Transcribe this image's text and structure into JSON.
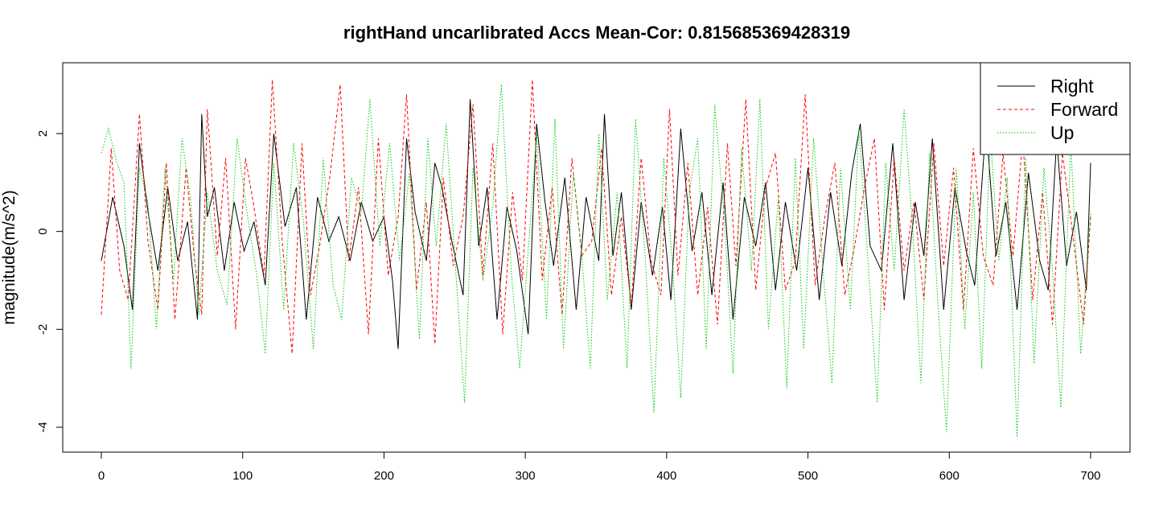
{
  "chart_data": {
    "type": "line",
    "title": "rightHand uncarlibrated Accs Mean-Cor: 0.815685369428319",
    "xlabel": "",
    "ylabel": "magnitude(m/s^2)",
    "xlim": [
      0,
      700
    ],
    "ylim": [
      -4.2,
      3.1
    ],
    "xticks": [
      0,
      100,
      200,
      300,
      400,
      500,
      600,
      700
    ],
    "yticks": [
      -4,
      -2,
      0,
      2
    ],
    "grid": false,
    "legend": "top-right",
    "series": [
      {
        "name": "Right",
        "color": "#000000",
        "dash": "solid",
        "x": [
          0,
          8,
          16,
          22,
          27,
          33,
          40,
          47,
          54,
          61,
          68,
          71,
          75,
          80,
          87,
          94,
          101,
          108,
          116,
          122,
          130,
          138,
          145,
          153,
          161,
          168,
          176,
          184,
          192,
          200,
          206,
          210,
          216,
          222,
          230,
          236,
          241,
          248,
          256,
          261,
          267,
          273,
          280,
          287,
          294,
          302,
          308,
          314,
          320,
          328,
          336,
          343,
          352,
          356,
          362,
          368,
          375,
          382,
          390,
          397,
          403,
          410,
          418,
          425,
          432,
          440,
          447,
          455,
          463,
          470,
          477,
          484,
          492,
          500,
          508,
          516,
          524,
          531,
          537,
          544,
          552,
          560,
          568,
          576,
          582,
          588,
          596,
          604,
          612,
          618,
          626,
          633,
          640,
          648,
          656,
          664,
          670,
          676,
          683,
          690,
          697,
          700
        ],
        "values": [
          -0.6,
          0.7,
          -0.3,
          -1.6,
          1.8,
          0.4,
          -0.8,
          0.9,
          -0.6,
          0.2,
          -1.8,
          2.4,
          0.3,
          0.9,
          -0.8,
          0.6,
          -0.4,
          0.2,
          -1.1,
          2.0,
          0.1,
          0.9,
          -1.8,
          0.7,
          -0.2,
          0.3,
          -0.6,
          0.6,
          -0.2,
          0.3,
          -1.0,
          -2.4,
          1.9,
          0.4,
          -0.6,
          1.4,
          0.9,
          -0.2,
          -1.3,
          2.7,
          -0.3,
          0.9,
          -1.8,
          0.5,
          -0.4,
          -2.1,
          2.2,
          0.6,
          -0.7,
          1.1,
          -1.6,
          0.7,
          -0.6,
          2.4,
          -0.5,
          0.8,
          -1.6,
          0.6,
          -0.9,
          0.5,
          -1.4,
          2.1,
          -0.4,
          0.8,
          -1.3,
          1.0,
          -1.8,
          0.7,
          -0.3,
          1.0,
          -1.2,
          0.6,
          -0.8,
          1.3,
          -1.4,
          0.8,
          -0.7,
          1.2,
          2.2,
          -0.3,
          -0.8,
          1.8,
          -1.4,
          0.6,
          -0.5,
          1.9,
          -1.6,
          0.9,
          -0.4,
          -1.1,
          2.2,
          -0.5,
          0.6,
          -1.6,
          1.2,
          -0.6,
          -1.2,
          1.9,
          -0.7,
          0.4,
          -1.2,
          1.4
        ]
      },
      {
        "name": "Forward",
        "color": "#ff0000",
        "dash": "dashed",
        "x": [
          0,
          7,
          13,
          19,
          27,
          33,
          40,
          46,
          52,
          60,
          66,
          71,
          75,
          82,
          88,
          95,
          102,
          108,
          115,
          121,
          128,
          135,
          142,
          148,
          155,
          162,
          169,
          175,
          182,
          189,
          196,
          203,
          210,
          216,
          223,
          230,
          236,
          242,
          249,
          256,
          263,
          270,
          277,
          284,
          291,
          298,
          305,
          312,
          319,
          326,
          333,
          340,
          347,
          354,
          361,
          368,
          375,
          382,
          389,
          396,
          402,
          408,
          415,
          422,
          429,
          436,
          443,
          449,
          456,
          463,
          470,
          477,
          484,
          491,
          498,
          505,
          512,
          519,
          526,
          533,
          540,
          547,
          554,
          561,
          568,
          575,
          582,
          589,
          596,
          603,
          610,
          617,
          624,
          631,
          638,
          645,
          652,
          659,
          666,
          673,
          680,
          688,
          695,
          700
        ],
        "values": [
          -1.7,
          1.7,
          -0.8,
          -1.4,
          2.4,
          -0.2,
          -1.6,
          1.4,
          -1.8,
          1.3,
          -0.6,
          -1.7,
          2.5,
          -0.5,
          1.5,
          -2.0,
          1.5,
          0.5,
          -0.9,
          3.1,
          -0.2,
          -2.5,
          1.8,
          -1.3,
          -0.2,
          1.2,
          3.0,
          -0.6,
          0.9,
          -2.1,
          1.9,
          -0.9,
          0.3,
          2.8,
          -1.2,
          0.6,
          -2.3,
          1.1,
          -0.7,
          0.3,
          2.6,
          -0.9,
          1.8,
          -2.1,
          0.8,
          -1.0,
          3.1,
          -1.0,
          0.9,
          -1.7,
          1.5,
          -0.5,
          -0.2,
          1.7,
          -1.3,
          0.3,
          -1.5,
          1.5,
          -0.6,
          -1.3,
          2.5,
          -0.9,
          1.4,
          -1.3,
          0.5,
          -1.9,
          1.8,
          -0.7,
          2.7,
          -1.2,
          0.9,
          1.6,
          -1.2,
          -0.6,
          2.8,
          -1.1,
          0.3,
          1.4,
          -1.3,
          -0.3,
          0.9,
          1.9,
          -1.6,
          1.5,
          -0.8,
          0.6,
          -1.4,
          1.8,
          -0.7,
          1.3,
          -1.6,
          1.7,
          -0.5,
          -1.1,
          1.6,
          -0.5,
          1.9,
          -1.4,
          0.8,
          -1.9,
          1.6,
          -0.2,
          -1.9,
          0.3
        ]
      },
      {
        "name": "Up",
        "color": "#00cd00",
        "dash": "dotted",
        "x": [
          0,
          5,
          11,
          16,
          21,
          27,
          33,
          39,
          45,
          51,
          57,
          63,
          69,
          75,
          82,
          89,
          96,
          103,
          110,
          116,
          122,
          129,
          136,
          143,
          150,
          157,
          164,
          170,
          177,
          184,
          190,
          197,
          204,
          211,
          218,
          225,
          231,
          237,
          244,
          251,
          257,
          263,
          270,
          277,
          283,
          290,
          296,
          302,
          308,
          315,
          321,
          327,
          334,
          340,
          346,
          352,
          358,
          365,
          372,
          378,
          385,
          391,
          398,
          404,
          410,
          416,
          422,
          428,
          434,
          441,
          447,
          453,
          460,
          466,
          472,
          479,
          485,
          491,
          497,
          504,
          511,
          517,
          523,
          530,
          536,
          542,
          549,
          555,
          561,
          568,
          574,
          580,
          586,
          592,
          598,
          605,
          611,
          617,
          623,
          629,
          635,
          641,
          648,
          654,
          660,
          667,
          673,
          679,
          686,
          693,
          700
        ],
        "values": [
          1.6,
          2.1,
          1.4,
          1.0,
          -2.8,
          1.3,
          0.6,
          -2.0,
          1.3,
          -1.0,
          1.9,
          0.7,
          -1.7,
          0.8,
          -0.8,
          -1.5,
          1.9,
          0.4,
          -0.9,
          -2.5,
          1.4,
          -1.6,
          1.8,
          0.2,
          -2.4,
          1.5,
          -1.1,
          -1.8,
          1.1,
          0.4,
          2.7,
          -0.3,
          1.8,
          -0.6,
          1.2,
          -2.2,
          1.9,
          -0.3,
          2.2,
          -0.9,
          -3.5,
          1.3,
          -1.0,
          0.5,
          3.0,
          -0.8,
          -2.8,
          -0.4,
          2.0,
          -1.8,
          2.3,
          -2.4,
          1.2,
          -0.5,
          -2.8,
          2.0,
          -1.4,
          0.8,
          -2.8,
          2.3,
          -0.6,
          -3.7,
          1.5,
          -0.6,
          -3.4,
          0.8,
          1.9,
          -2.4,
          2.6,
          0.2,
          -2.9,
          1.7,
          -0.8,
          2.7,
          -2.0,
          0.7,
          -3.2,
          1.5,
          -2.4,
          1.9,
          -0.9,
          -3.1,
          1.3,
          -1.6,
          2.1,
          -0.4,
          -3.5,
          1.4,
          -0.8,
          2.5,
          0.1,
          -3.1,
          1.6,
          -1.5,
          -4.1,
          1.3,
          -2.0,
          0.8,
          -2.8,
          2.0,
          -0.6,
          1.1,
          -4.2,
          1.5,
          -2.7,
          1.3,
          -0.8,
          -3.6,
          1.8,
          -2.5,
          0.4
        ]
      }
    ]
  }
}
